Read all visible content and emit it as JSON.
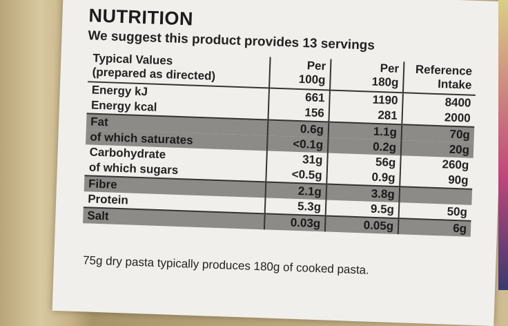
{
  "header": {
    "title": "NUTRITION",
    "subtitle": "We suggest this product provides 13 servings"
  },
  "table": {
    "columns": [
      "Typical Values\n(prepared as directed)",
      "Per\n100g",
      "Per\n180g",
      "Reference\nIntake"
    ],
    "rows": [
      {
        "cells": [
          "Energy kJ",
          "661",
          "1190",
          "8400"
        ],
        "shaded": false
      },
      {
        "cells": [
          "Energy kcal",
          "156",
          "281",
          "2000"
        ],
        "shaded": false
      },
      {
        "cells": [
          "Fat",
          "0.6g",
          "1.1g",
          "70g"
        ],
        "shaded": true
      },
      {
        "cells": [
          "of which saturates",
          "<0.1g",
          "0.2g",
          "20g"
        ],
        "shaded": true
      },
      {
        "cells": [
          "Carbohydrate",
          "31g",
          "56g",
          "260g"
        ],
        "shaded": false
      },
      {
        "cells": [
          "of which sugars",
          "<0.5g",
          "0.9g",
          "90g"
        ],
        "shaded": false
      },
      {
        "cells": [
          "Fibre",
          "2.1g",
          "3.8g",
          null
        ],
        "shaded": true
      },
      {
        "cells": [
          "Protein",
          "5.3g",
          "9.5g",
          "50g"
        ],
        "shaded": false
      },
      {
        "cells": [
          "Salt",
          "0.03g",
          "0.05g",
          "6g"
        ],
        "shaded": true
      }
    ]
  },
  "footer": "75g dry pasta typically produces 180g of cooked pasta."
}
